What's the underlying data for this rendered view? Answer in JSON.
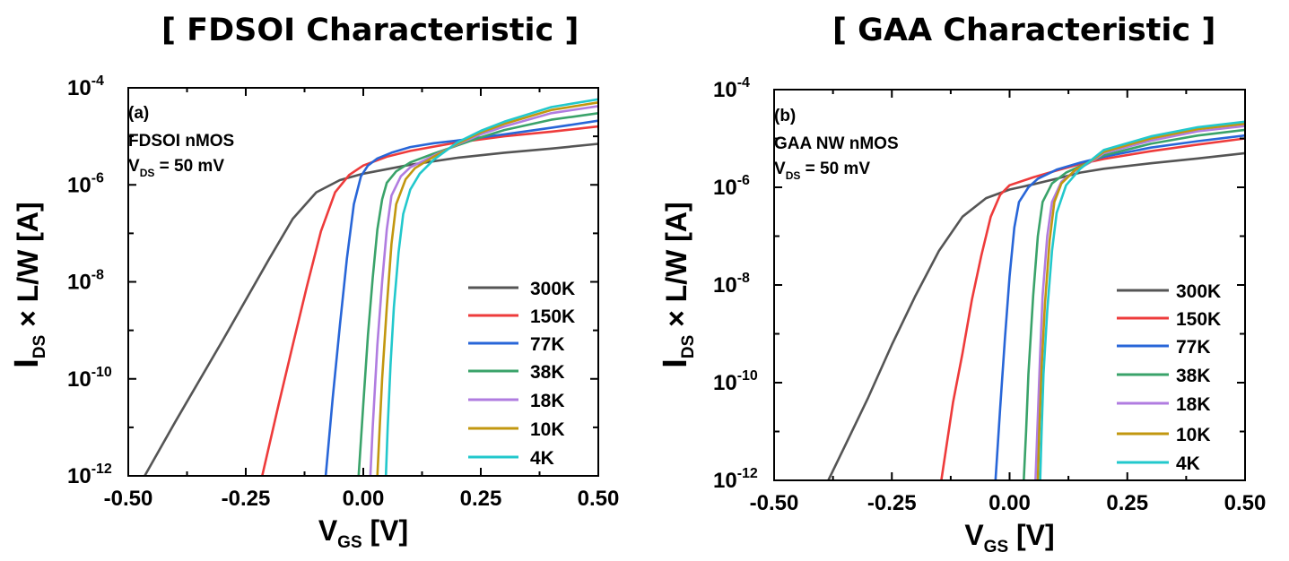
{
  "titles": {
    "left": "[ FDSOI Characteristic ]",
    "right": "[ GAA Characteristic ]"
  },
  "colors": {
    "300K": "#555555",
    "150K": "#ee3b3b",
    "77K": "#2866d8",
    "38K": "#3aa36a",
    "18K": "#b07ce0",
    "10K": "#c2970f",
    "4K": "#22c8cc"
  },
  "chart_data": [
    {
      "type": "line",
      "panel_label": "(a)",
      "notes": [
        "FDSOI nMOS",
        "V_DS = 50 mV"
      ],
      "xlabel": "V_GS [V]",
      "ylabel": "I_DS × L/W [A]",
      "xlim": [
        -0.5,
        0.5
      ],
      "ylim": [
        1e-12,
        0.0001
      ],
      "yscale": "log",
      "xticks": [
        "-0.50",
        "-0.25",
        "0.00",
        "0.25",
        "0.50"
      ],
      "yticks": [
        "10^-12",
        "10^-10",
        "10^-8",
        "10^-6",
        "10^-4"
      ],
      "legend_position": "bottom-right",
      "series": [
        {
          "name": "300K",
          "x": [
            -0.465,
            -0.4,
            -0.3,
            -0.2,
            -0.15,
            -0.1,
            -0.05,
            0.0,
            0.1,
            0.2,
            0.3,
            0.4,
            0.5
          ],
          "y": [
            1e-12,
            1.3e-11,
            6e-10,
            3e-08,
            2e-07,
            7e-07,
            1.25e-06,
            1.7e-06,
            2.6e-06,
            3.6e-06,
            4.6e-06,
            5.6e-06,
            7e-06
          ]
        },
        {
          "name": "150K",
          "x": [
            -0.215,
            -0.18,
            -0.15,
            -0.12,
            -0.09,
            -0.06,
            -0.03,
            0.0,
            0.05,
            0.1,
            0.2,
            0.3,
            0.4,
            0.5
          ],
          "y": [
            1e-12,
            3e-11,
            5e-10,
            8e-09,
            1.1e-07,
            7e-07,
            1.6e-06,
            2.5e-06,
            3.8e-06,
            5e-06,
            7.5e-06,
            1e-05,
            1.25e-05,
            1.6e-05
          ]
        },
        {
          "name": "77K",
          "x": [
            -0.08,
            -0.065,
            -0.05,
            -0.035,
            -0.02,
            -0.005,
            0.01,
            0.03,
            0.06,
            0.1,
            0.15,
            0.2,
            0.3,
            0.4,
            0.5
          ],
          "y": [
            1e-12,
            4e-11,
            1.2e-09,
            3e-08,
            4e-07,
            1.5e-06,
            2.5e-06,
            3.5e-06,
            4.6e-06,
            6e-06,
            7.2e-06,
            8.2e-06,
            1.1e-05,
            1.5e-05,
            2.1e-05
          ]
        },
        {
          "name": "38K",
          "x": [
            -0.01,
            0.0,
            0.01,
            0.02,
            0.03,
            0.04,
            0.05,
            0.07,
            0.1,
            0.15,
            0.2,
            0.25,
            0.3,
            0.4,
            0.5
          ],
          "y": [
            1e-12,
            3e-11,
            8e-10,
            1.2e-08,
            1.2e-07,
            5e-07,
            1.1e-06,
            1.9e-06,
            2.9e-06,
            4.4e-06,
            6.5e-06,
            9.5e-06,
            1.35e-05,
            2.2e-05,
            3e-05
          ]
        },
        {
          "name": "18K",
          "x": [
            0.015,
            0.02,
            0.03,
            0.04,
            0.05,
            0.06,
            0.08,
            0.1,
            0.15,
            0.2,
            0.25,
            0.3,
            0.4,
            0.5
          ],
          "y": [
            1e-12,
            1e-11,
            5e-10,
            1e-08,
            1.2e-07,
            6e-07,
            1.5e-06,
            2.3e-06,
            4e-06,
            6.8e-06,
            1.1e-05,
            1.6e-05,
            3e-05,
            4.2e-05
          ]
        },
        {
          "name": "10K",
          "x": [
            0.03,
            0.035,
            0.04,
            0.05,
            0.06,
            0.07,
            0.09,
            0.11,
            0.15,
            0.2,
            0.25,
            0.3,
            0.4,
            0.5
          ],
          "y": [
            1e-12,
            1e-11,
            1e-10,
            3e-09,
            6e-08,
            4e-07,
            1.3e-06,
            2.2e-06,
            3.8e-06,
            7e-06,
            1.2e-05,
            1.8e-05,
            3.5e-05,
            5e-05
          ]
        },
        {
          "name": "4K",
          "x": [
            0.048,
            0.052,
            0.058,
            0.065,
            0.075,
            0.085,
            0.1,
            0.12,
            0.15,
            0.2,
            0.25,
            0.3,
            0.4,
            0.5
          ],
          "y": [
            1e-12,
            1e-11,
            2e-10,
            3e-09,
            4e-08,
            2.5e-07,
            8e-07,
            1.7e-06,
            3.3e-06,
            7.5e-06,
            1.3e-05,
            2e-05,
            4e-05,
            5.8e-05
          ]
        }
      ]
    },
    {
      "type": "line",
      "panel_label": "(b)",
      "notes": [
        "GAA NW nMOS",
        "V_DS = 50 mV"
      ],
      "xlabel": "V_GS [V]",
      "ylabel": "I_DS × L/W [A]",
      "xlim": [
        -0.5,
        0.5
      ],
      "ylim": [
        1e-12,
        0.0001
      ],
      "yscale": "log",
      "xticks": [
        "-0.50",
        "-0.25",
        "0.00",
        "0.25",
        "0.50"
      ],
      "yticks": [
        "10^-12",
        "10^-10",
        "10^-8",
        "10^-6",
        "10^-4"
      ],
      "legend_position": "bottom-right",
      "series": [
        {
          "name": "300K",
          "x": [
            -0.385,
            -0.35,
            -0.3,
            -0.25,
            -0.2,
            -0.15,
            -0.1,
            -0.05,
            0.0,
            0.05,
            0.1,
            0.15,
            0.2,
            0.3,
            0.4,
            0.5
          ],
          "y": [
            1e-12,
            5e-12,
            5e-11,
            6e-10,
            6e-09,
            5e-08,
            2.5e-07,
            6e-07,
            9e-07,
            1.15e-06,
            1.5e-06,
            2e-06,
            2.4e-06,
            3.1e-06,
            3.9e-06,
            5e-06
          ]
        },
        {
          "name": "150K",
          "x": [
            -0.145,
            -0.12,
            -0.1,
            -0.08,
            -0.06,
            -0.04,
            -0.02,
            0.0,
            0.05,
            0.1,
            0.15,
            0.2,
            0.3,
            0.4,
            0.5
          ],
          "y": [
            1e-12,
            4e-11,
            4e-10,
            5e-09,
            4e-08,
            2.5e-07,
            7e-07,
            1.1e-06,
            1.6e-06,
            2.2e-06,
            3e-06,
            3.8e-06,
            5.5e-06,
            7.5e-06,
            1e-05
          ]
        },
        {
          "name": "77K",
          "x": [
            -0.03,
            -0.02,
            -0.01,
            0.0,
            0.01,
            0.02,
            0.04,
            0.06,
            0.1,
            0.15,
            0.2,
            0.3,
            0.4,
            0.5
          ],
          "y": [
            1e-12,
            3e-11,
            8e-10,
            1.5e-08,
            1.5e-07,
            5e-07,
            1e-06,
            1.5e-06,
            2.3e-06,
            3.2e-06,
            4.2e-06,
            6.5e-06,
            8.8e-06,
            1.15e-05
          ]
        },
        {
          "name": "38K",
          "x": [
            0.03,
            0.035,
            0.04,
            0.05,
            0.06,
            0.07,
            0.09,
            0.12,
            0.16,
            0.2,
            0.3,
            0.4,
            0.5
          ],
          "y": [
            1e-12,
            1e-11,
            1.5e-10,
            6e-09,
            1e-07,
            5e-07,
            1.2e-06,
            2e-06,
            3e-06,
            4.5e-06,
            7.8e-06,
            1.15e-05,
            1.5e-05
          ]
        },
        {
          "name": "18K",
          "x": [
            0.055,
            0.06,
            0.065,
            0.07,
            0.08,
            0.09,
            0.11,
            0.14,
            0.17,
            0.2,
            0.3,
            0.4,
            0.5
          ],
          "y": [
            1e-12,
            2e-11,
            4e-10,
            6e-09,
            1e-07,
            5e-07,
            1.3e-06,
            2.2e-06,
            3.2e-06,
            5e-06,
            9e-06,
            1.4e-05,
            1.8e-05
          ]
        },
        {
          "name": "10K",
          "x": [
            0.06,
            0.063,
            0.068,
            0.075,
            0.085,
            0.095,
            0.11,
            0.14,
            0.17,
            0.2,
            0.3,
            0.4,
            0.5
          ],
          "y": [
            1e-12,
            1e-11,
            2e-10,
            4e-09,
            8e-08,
            5e-07,
            1.2e-06,
            2.3e-06,
            3.3e-06,
            5.3e-06,
            1e-05,
            1.55e-05,
            2e-05
          ]
        },
        {
          "name": "4K",
          "x": [
            0.065,
            0.068,
            0.072,
            0.08,
            0.09,
            0.1,
            0.12,
            0.15,
            0.17,
            0.2,
            0.3,
            0.4,
            0.5
          ],
          "y": [
            1e-12,
            1e-11,
            1.5e-10,
            3e-09,
            5e-08,
            3e-07,
            1.1e-06,
            2.4e-06,
            3.4e-06,
            5.8e-06,
            1.1e-05,
            1.7e-05,
            2.2e-05
          ]
        }
      ]
    }
  ]
}
